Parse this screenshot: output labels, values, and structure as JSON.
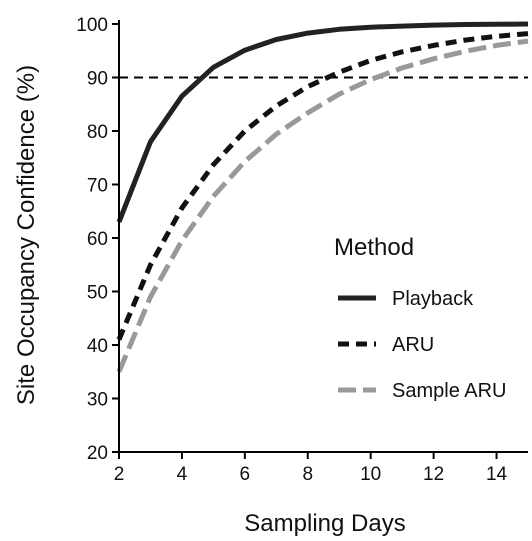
{
  "chart_data": {
    "type": "line",
    "xlabel": "Sampling Days",
    "ylabel": "Site Occupancy Confidence (%)",
    "xlim": [
      2,
      15
    ],
    "ylim": [
      20,
      100
    ],
    "xticks": [
      2,
      4,
      6,
      8,
      10,
      12,
      14
    ],
    "yticks": [
      20,
      30,
      40,
      50,
      60,
      70,
      80,
      90,
      100
    ],
    "reference_line": {
      "y": 90,
      "style": "dashed",
      "color": "#000000"
    },
    "legend": {
      "title": "Method",
      "placement": "center-right"
    },
    "series": [
      {
        "name": "Playback",
        "style": "solid",
        "color": "#222222",
        "x": [
          2,
          3,
          4,
          5,
          6,
          7,
          8,
          9,
          10,
          11,
          12,
          13,
          14,
          15
        ],
        "y": [
          63,
          78,
          86.5,
          91.9,
          95.1,
          97.1,
          98.3,
          99.0,
          99.4,
          99.6,
          99.8,
          99.9,
          99.95,
          100
        ]
      },
      {
        "name": "ARU",
        "style": "dashed",
        "color": "#111111",
        "x": [
          2,
          3,
          4,
          5,
          6,
          7,
          8,
          9,
          10,
          11,
          12,
          13,
          14,
          15
        ],
        "y": [
          41,
          55,
          65.6,
          73.7,
          80.0,
          84.7,
          88.3,
          91.0,
          93.2,
          94.8,
          96.0,
          97.0,
          97.7,
          98.2
        ]
      },
      {
        "name": "Sample ARU",
        "style": "dash-dot",
        "color": "#999999",
        "x": [
          2,
          3,
          4,
          5,
          6,
          7,
          8,
          9,
          10,
          11,
          12,
          13,
          14,
          15
        ],
        "y": [
          35,
          49,
          59.5,
          67.8,
          74.3,
          79.4,
          83.4,
          86.9,
          89.6,
          91.8,
          93.5,
          94.9,
          96.0,
          96.8
        ]
      }
    ]
  }
}
